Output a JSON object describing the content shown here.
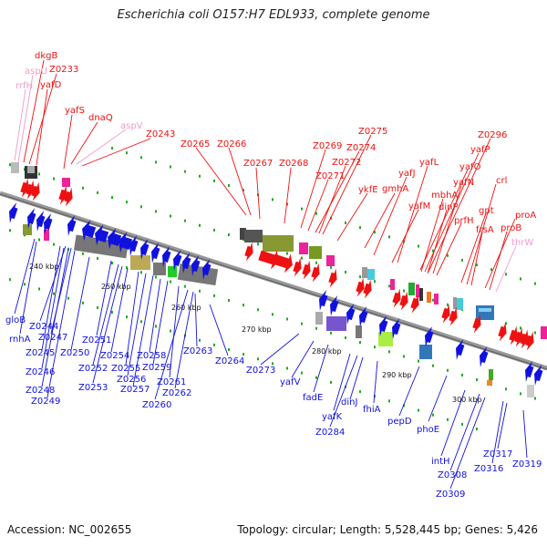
{
  "header": {
    "title": "Escherichia coli O157:H7 EDL933, complete genome"
  },
  "footer": {
    "accession": "Accession: NC_002655",
    "summary": "Topology: circular; Length: 5,528,445 bp; Genes: 5,426"
  },
  "colors": {
    "forward": "#ee1111",
    "reverse": "#1111dd",
    "faded": "#f29acc",
    "backbone": "#888888",
    "rna": "#22aa22"
  },
  "scale": {
    "unit": "kbp",
    "ticks": [
      "240 kbp",
      "250 kbp",
      "260 kbp",
      "270 kbp",
      "280 kbp",
      "290 kbp",
      "300 kbp"
    ]
  },
  "forward_labels": [
    {
      "name": "dkgB",
      "style": "normal"
    },
    {
      "name": "aspU",
      "style": "faded"
    },
    {
      "name": "Z0233",
      "style": "normal"
    },
    {
      "name": "rrfH",
      "style": "faded"
    },
    {
      "name": "yafD",
      "style": "normal"
    },
    {
      "name": "yafS",
      "style": "normal"
    },
    {
      "name": "dnaQ",
      "style": "normal"
    },
    {
      "name": "aspV",
      "style": "faded"
    },
    {
      "name": "Z0243",
      "style": "normal"
    },
    {
      "name": "Z0265",
      "style": "normal"
    },
    {
      "name": "Z0266",
      "style": "normal"
    },
    {
      "name": "Z0267",
      "style": "normal"
    },
    {
      "name": "Z0268",
      "style": "normal"
    },
    {
      "name": "Z0269",
      "style": "normal"
    },
    {
      "name": "Z0275",
      "style": "normal"
    },
    {
      "name": "Z0274",
      "style": "normal"
    },
    {
      "name": "Z0272",
      "style": "normal"
    },
    {
      "name": "Z0271",
      "style": "normal"
    },
    {
      "name": "ykfE",
      "style": "normal"
    },
    {
      "name": "gmhA",
      "style": "normal"
    },
    {
      "name": "yafJ",
      "style": "normal"
    },
    {
      "name": "yafL",
      "style": "normal"
    },
    {
      "name": "yafM",
      "style": "normal"
    },
    {
      "name": "Z0296",
      "style": "normal"
    },
    {
      "name": "yafP",
      "style": "normal"
    },
    {
      "name": "yafO",
      "style": "normal"
    },
    {
      "name": "yafN",
      "style": "normal"
    },
    {
      "name": "mbhA",
      "style": "normal"
    },
    {
      "name": "dinP",
      "style": "normal"
    },
    {
      "name": "prfH",
      "style": "normal"
    },
    {
      "name": "gpt",
      "style": "normal"
    },
    {
      "name": "crl",
      "style": "normal"
    },
    {
      "name": "frsA",
      "style": "normal"
    },
    {
      "name": "proA",
      "style": "normal"
    },
    {
      "name": "proB",
      "style": "normal"
    },
    {
      "name": "thrW",
      "style": "faded"
    }
  ],
  "reverse_labels": [
    "gloB",
    "Z0244",
    "rnhA",
    "Z0247",
    "Z0245",
    "Z0246",
    "Z0248",
    "Z0249",
    "Z0250",
    "Z0251",
    "Z0252",
    "Z0254",
    "Z0253",
    "Z0255",
    "Z0256",
    "Z0257",
    "Z0258",
    "Z0259",
    "Z0260",
    "Z0261",
    "Z0262",
    "Z0263",
    "Z0264",
    "Z0273",
    "yafV",
    "fadE",
    "yafK",
    "Z0284",
    "dinJ",
    "fhiA",
    "pepD",
    "phoE",
    "intH",
    "Z0308",
    "Z0309",
    "Z0316",
    "Z0317",
    "Z0319"
  ]
}
